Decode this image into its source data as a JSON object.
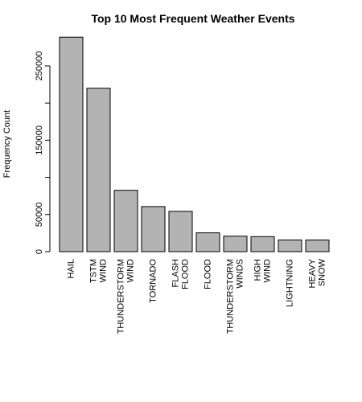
{
  "chart_data": {
    "type": "bar",
    "title": "Top 10 Most Frequent Weather Events",
    "xlabel": "",
    "ylabel": "Frequency Count",
    "categories": [
      [
        "HAIL"
      ],
      [
        "TSTM",
        "WIND"
      ],
      [
        "THUNDERSTORM",
        "WIND"
      ],
      [
        "TORNADO"
      ],
      [
        "FLASH",
        "FLOOD"
      ],
      [
        "FLOOD"
      ],
      [
        "THUNDERSTORM",
        "WINDS"
      ],
      [
        "HIGH",
        "WIND"
      ],
      [
        "LIGHTNING"
      ],
      [
        "HEAVY",
        "SNOW"
      ]
    ],
    "values": [
      288661,
      219940,
      82563,
      60652,
      54277,
      25326,
      20843,
      20212,
      15754,
      15708
    ],
    "ylim": [
      0,
      290000
    ],
    "yticks": [
      0,
      50000,
      100000,
      150000,
      200000,
      250000
    ],
    "ytick_labels": [
      "0",
      "50000",
      "",
      "150000",
      "",
      "250000"
    ],
    "grid": false,
    "bar_color": "#b3b3b3"
  }
}
